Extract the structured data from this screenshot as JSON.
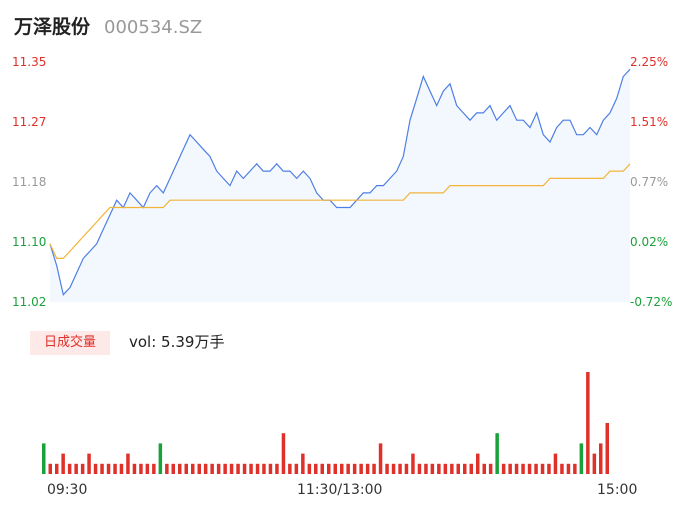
{
  "header": {
    "name": "万泽股份",
    "code": "000534.SZ"
  },
  "price_axis": {
    "left_labels": [
      "11.35",
      "11.27",
      "11.18",
      "11.10",
      "11.02"
    ],
    "right_labels": [
      "2.25%",
      "1.51%",
      "0.77%",
      "0.02%",
      "-0.72%"
    ]
  },
  "volume": {
    "tag": "日成交量",
    "text": "vol: 5.39万手"
  },
  "time_axis": [
    "09:30",
    "11:30/13:00",
    "15:00"
  ],
  "colors": {
    "up": "#e0302a",
    "down": "#1aa13a",
    "price_line": "#4e7fe3",
    "avg_line": "#f3b43a",
    "neutral": "#999999"
  },
  "chart_data": {
    "type": "line",
    "ylim": [
      11.02,
      11.35
    ],
    "series": [
      {
        "values": [
          11.1,
          11.07,
          11.03,
          11.04,
          11.06,
          11.08,
          11.09,
          11.1,
          11.12,
          11.14,
          11.16,
          11.15,
          11.17,
          11.16,
          11.15,
          11.17,
          11.18,
          11.17,
          11.19,
          11.21,
          11.23,
          11.25,
          11.24,
          11.23,
          11.22,
          11.2,
          11.19,
          11.18,
          11.2,
          11.19,
          11.2,
          11.21,
          11.2,
          11.2,
          11.21,
          11.2,
          11.2,
          11.19,
          11.2,
          11.19,
          11.17,
          11.16,
          11.16,
          11.15,
          11.15,
          11.15,
          11.16,
          11.17,
          11.17,
          11.18,
          11.18,
          11.19,
          11.2,
          11.22,
          11.27,
          11.3,
          11.33,
          11.31,
          11.29,
          11.31,
          11.32,
          11.29,
          11.28,
          11.27,
          11.28,
          11.28,
          11.29,
          11.27,
          11.28,
          11.29,
          11.27,
          11.27,
          11.26,
          11.28,
          11.25,
          11.24,
          11.26,
          11.27,
          11.27,
          11.25,
          11.25,
          11.26,
          11.25,
          11.27,
          11.28,
          11.3,
          11.33,
          11.34
        ]
      },
      {
        "values": [
          11.1,
          11.08,
          11.08,
          11.09,
          11.1,
          11.11,
          11.12,
          11.13,
          11.14,
          11.15,
          11.15,
          11.15,
          11.15,
          11.15,
          11.15,
          11.15,
          11.15,
          11.15,
          11.16,
          11.16,
          11.16,
          11.16,
          11.16,
          11.16,
          11.16,
          11.16,
          11.16,
          11.16,
          11.16,
          11.16,
          11.16,
          11.16,
          11.16,
          11.16,
          11.16,
          11.16,
          11.16,
          11.16,
          11.16,
          11.16,
          11.16,
          11.16,
          11.16,
          11.16,
          11.16,
          11.16,
          11.16,
          11.16,
          11.16,
          11.16,
          11.16,
          11.16,
          11.16,
          11.16,
          11.17,
          11.17,
          11.17,
          11.17,
          11.17,
          11.17,
          11.18,
          11.18,
          11.18,
          11.18,
          11.18,
          11.18,
          11.18,
          11.18,
          11.18,
          11.18,
          11.18,
          11.18,
          11.18,
          11.18,
          11.18,
          11.19,
          11.19,
          11.19,
          11.19,
          11.19,
          11.19,
          11.19,
          11.19,
          11.19,
          11.2,
          11.2,
          11.2,
          11.21
        ]
      }
    ],
    "volume": [
      3,
      1,
      1,
      2,
      1,
      1,
      1,
      2,
      1,
      1,
      1,
      1,
      1,
      2,
      1,
      1,
      1,
      1,
      3,
      1,
      1,
      1,
      1,
      1,
      1,
      1,
      1,
      1,
      1,
      1,
      1,
      1,
      1,
      1,
      1,
      1,
      1,
      4,
      1,
      1,
      2,
      1,
      1,
      1,
      1,
      1,
      1,
      1,
      1,
      1,
      1,
      1,
      3,
      1,
      1,
      1,
      1,
      2,
      1,
      1,
      1,
      1,
      1,
      1,
      1,
      1,
      1,
      2,
      1,
      1,
      4,
      1,
      1,
      1,
      1,
      1,
      1,
      1,
      1,
      2,
      1,
      1,
      1,
      3,
      10,
      2,
      3,
      5
    ],
    "volume_dir": [
      "down",
      "up",
      "up",
      "up",
      "up",
      "up",
      "up",
      "up",
      "up",
      "up",
      "up",
      "up",
      "up",
      "up",
      "up",
      "up",
      "up",
      "up",
      "down",
      "up",
      "up",
      "up",
      "up",
      "up",
      "up",
      "up",
      "up",
      "up",
      "up",
      "up",
      "up",
      "up",
      "up",
      "up",
      "up",
      "up",
      "up",
      "up",
      "up",
      "up",
      "up",
      "up",
      "up",
      "up",
      "up",
      "up",
      "up",
      "up",
      "up",
      "up",
      "up",
      "up",
      "up",
      "up",
      "up",
      "up",
      "up",
      "up",
      "up",
      "up",
      "up",
      "up",
      "up",
      "up",
      "up",
      "up",
      "up",
      "up",
      "up",
      "up",
      "down",
      "up",
      "up",
      "up",
      "up",
      "up",
      "up",
      "up",
      "up",
      "up",
      "up",
      "up",
      "up",
      "down",
      "up",
      "up",
      "up",
      "up"
    ]
  }
}
